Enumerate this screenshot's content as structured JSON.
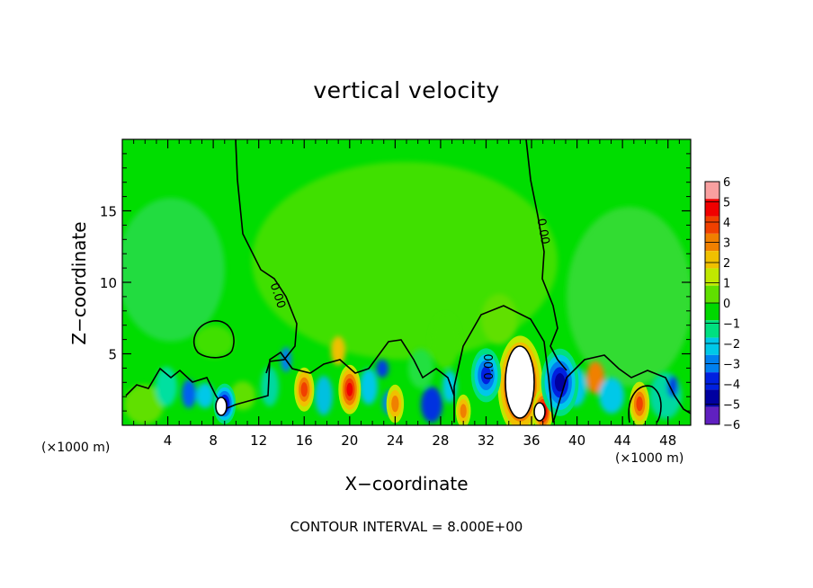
{
  "chart_data": {
    "type": "heatmap",
    "title": "vertical velocity",
    "xlabel": "X−coordinate",
    "ylabel": "Z−coordinate",
    "x_unit_label": "(×1000 m)",
    "xlim": [
      0,
      50
    ],
    "ylim": [
      0,
      20
    ],
    "x_ticks": [
      4,
      8,
      12,
      16,
      20,
      24,
      28,
      32,
      36,
      40,
      44,
      48
    ],
    "y_ticks": [
      5,
      10,
      15
    ],
    "footer": "CONTOUR INTERVAL = 8.000E+00",
    "contour_label": "0.00",
    "colorbar": {
      "levels": [
        "6",
        "5",
        "4",
        "3",
        "2",
        "1",
        "0",
        "−1",
        "−2",
        "−3",
        "−4",
        "−5",
        "−6"
      ],
      "colors": [
        "#f9a0a0",
        "#f00000",
        "#f04000",
        "#f08000",
        "#f0c000",
        "#c0e800",
        "#60e000",
        "#00d800",
        "#00e080",
        "#00c8e8",
        "#0080f0",
        "#0020e0",
        "#0000a0",
        "#6020c0"
      ]
    },
    "features": [
      {
        "x": 35,
        "z": 2.8,
        "w": 1.8,
        "sign": 1,
        "peak": 12
      },
      {
        "x": 37,
        "z": 1.0,
        "w": 0.8,
        "sign": 1,
        "peak": 6
      },
      {
        "x": 38.5,
        "z": 3.0,
        "w": 1.5,
        "sign": -1,
        "peak": 5
      },
      {
        "x": 32,
        "z": 3.5,
        "w": 1.2,
        "sign": -1,
        "peak": 4
      },
      {
        "x": 9,
        "z": 1.5,
        "w": 0.9,
        "sign": -1,
        "peak": 5
      },
      {
        "x": 16,
        "z": 2.5,
        "w": 0.8,
        "sign": 1,
        "peak": 4
      },
      {
        "x": 20,
        "z": 2.5,
        "w": 0.9,
        "sign": 1,
        "peak": 5
      },
      {
        "x": 45.5,
        "z": 1.5,
        "w": 0.8,
        "sign": 1,
        "peak": 4
      },
      {
        "x": 24,
        "z": 1.5,
        "w": 0.7,
        "sign": 1,
        "peak": 3
      },
      {
        "x": 30,
        "z": 1.0,
        "w": 0.6,
        "sign": 1,
        "peak": 3
      }
    ]
  }
}
